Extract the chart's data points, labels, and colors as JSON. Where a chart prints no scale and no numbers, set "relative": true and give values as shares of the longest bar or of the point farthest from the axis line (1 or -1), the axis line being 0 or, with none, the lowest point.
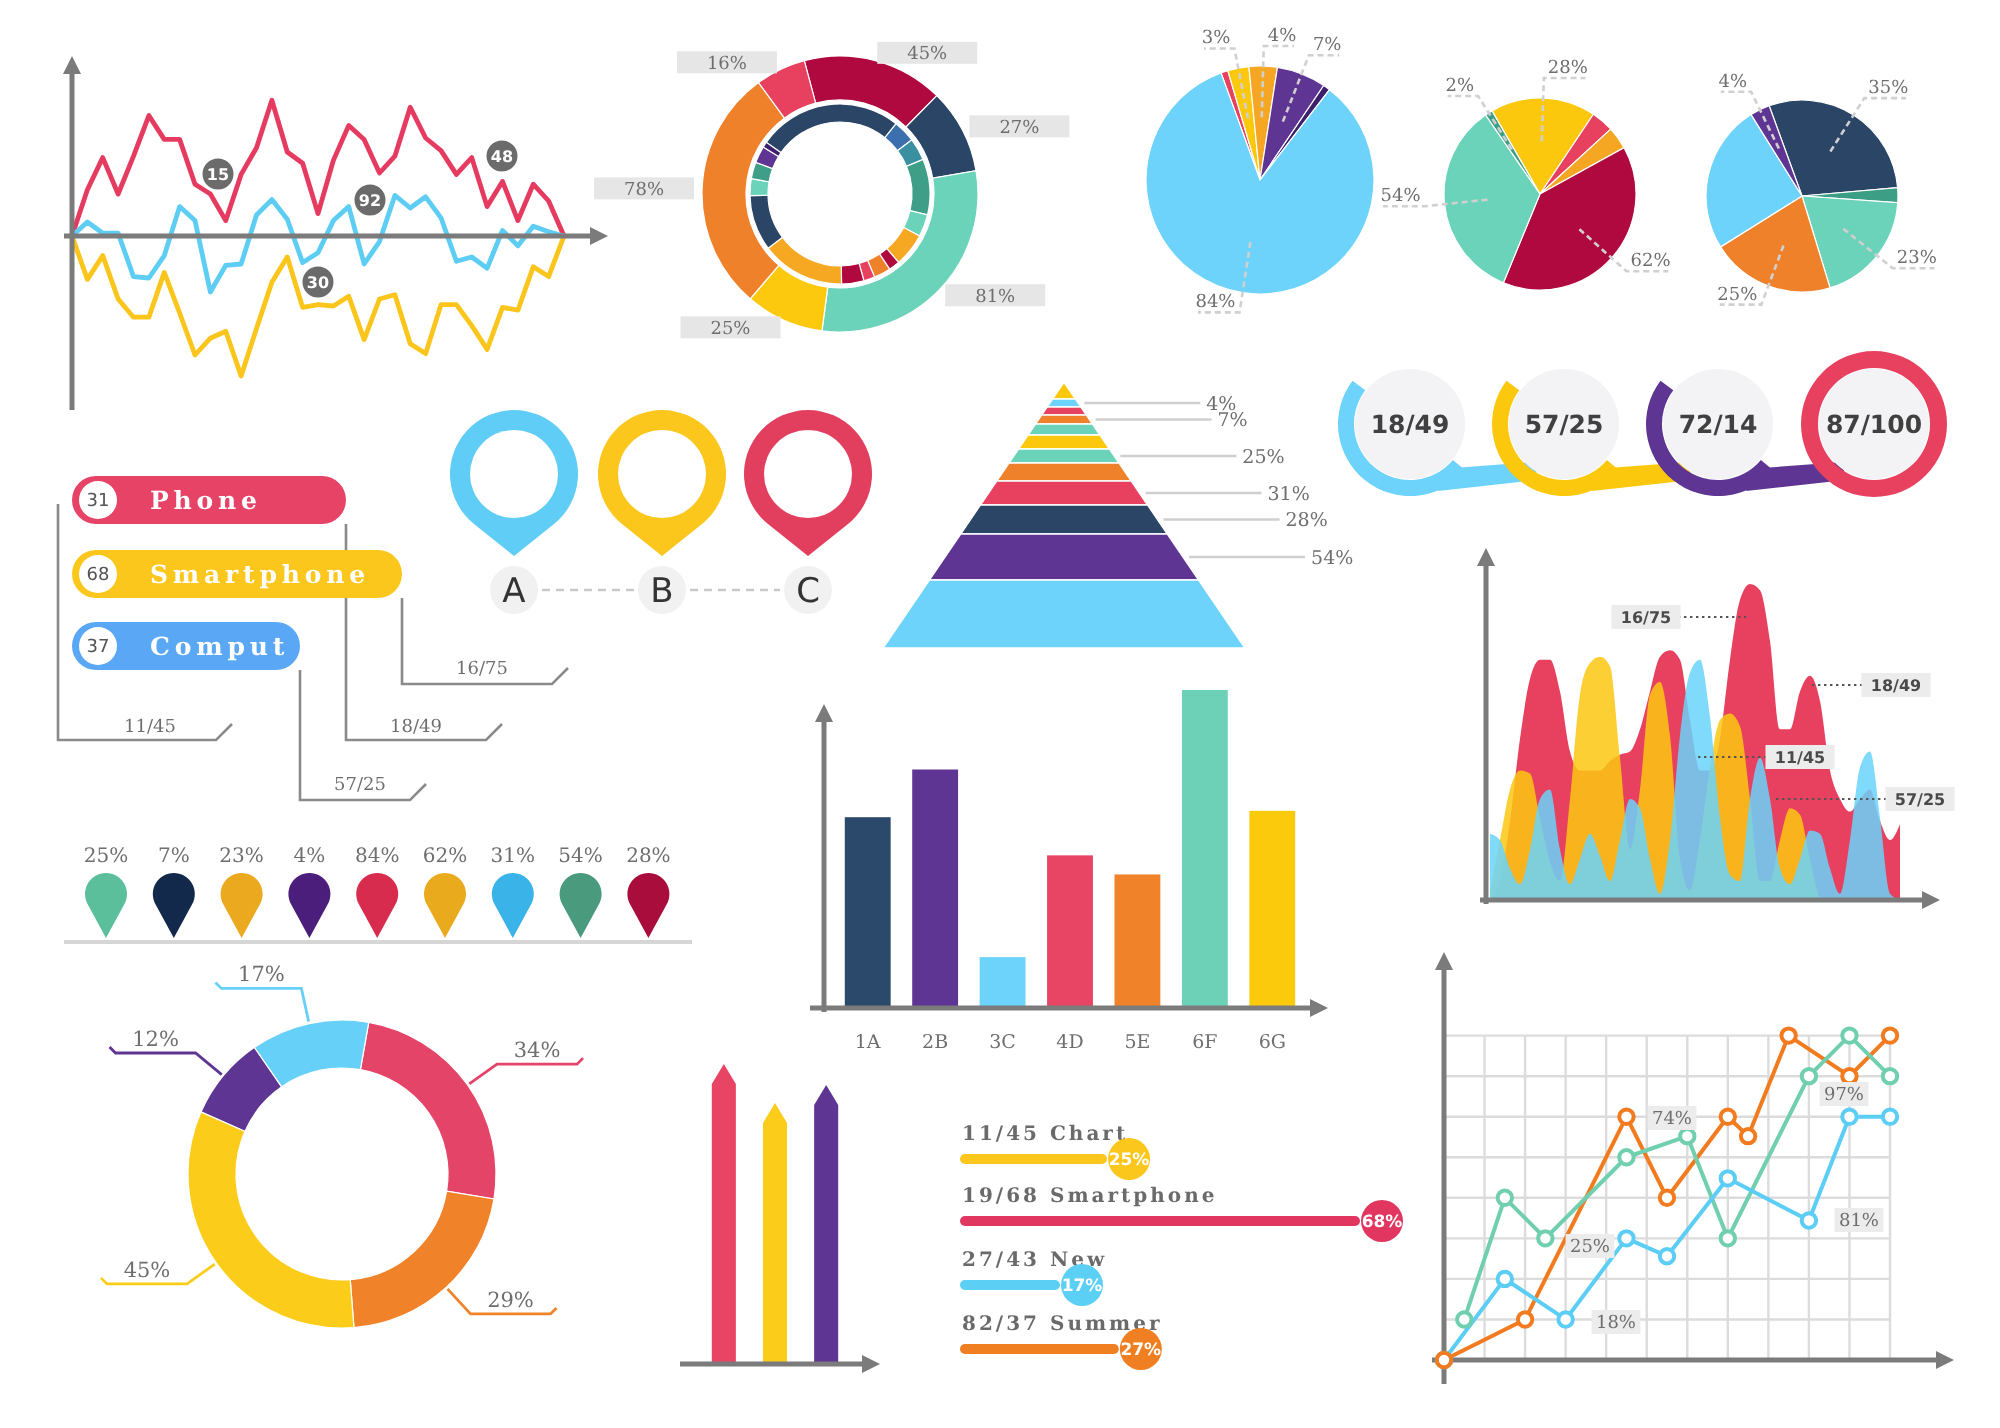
{
  "chart_data": [
    {
      "type": "line",
      "relative": true,
      "categories": [
        null,
        null,
        null,
        null,
        null,
        null,
        null,
        null,
        null,
        null,
        null,
        null,
        null,
        null,
        null,
        null,
        null,
        null,
        null,
        null,
        null,
        null,
        null,
        null,
        null,
        null,
        null,
        null,
        null,
        null,
        null,
        null,
        null
      ],
      "series": [
        {
          "color": "#e63b60",
          "values": [
            0,
            0.33,
            0.56,
            0.3,
            0.57,
            0.86,
            0.69,
            0.69,
            0.37,
            0.3,
            0.11,
            0.44,
            0.63,
            0.97,
            0.6,
            0.52,
            0.16,
            0.54,
            0.79,
            0.69,
            0.45,
            0.57,
            0.92,
            0.7,
            0.61,
            0.44,
            0.56,
            0.21,
            0.39,
            0.11,
            0.37,
            0.25,
            0
          ]
        },
        {
          "color": "#5dcdf3",
          "values": [
            0,
            0.1,
            0.02,
            0.02,
            -0.29,
            -0.3,
            -0.14,
            0.21,
            0.11,
            -0.4,
            -0.21,
            -0.2,
            0.15,
            0.26,
            0.12,
            -0.19,
            -0.12,
            0.11,
            0.21,
            -0.2,
            -0.04,
            0.29,
            0.2,
            0.28,
            0.13,
            -0.18,
            -0.15,
            -0.23,
            0.04,
            -0.07,
            0.07,
            0.03,
            0
          ]
        },
        {
          "color": "#fbc51b",
          "values": [
            0,
            -0.31,
            -0.14,
            -0.45,
            -0.58,
            -0.58,
            -0.26,
            -0.55,
            -0.85,
            -0.73,
            -0.68,
            -1,
            -0.66,
            -0.33,
            -0.15,
            -0.51,
            -0.49,
            -0.5,
            -0.43,
            -0.74,
            -0.45,
            -0.42,
            -0.77,
            -0.84,
            -0.49,
            -0.49,
            -0.64,
            -0.81,
            -0.51,
            -0.53,
            -0.22,
            -0.29,
            0
          ]
        }
      ],
      "annotations": [
        "15",
        "92",
        "48",
        "30"
      ]
    },
    {
      "type": "donut",
      "categories": [
        null,
        null,
        null,
        null,
        null,
        null
      ],
      "values": [
        45,
        27,
        81,
        25,
        78,
        16
      ],
      "colors": [
        "#b0093f",
        "#2a4565",
        "#6ad3b9",
        "#fdc90e",
        "#f0812b",
        "#e8415f"
      ],
      "value_labels": [
        "45%",
        "27%",
        "81%",
        "25%",
        "78%",
        "16%"
      ]
    },
    {
      "type": "donut",
      "categories": [
        null,
        null,
        null,
        null,
        null,
        null,
        null,
        null,
        null,
        null,
        null,
        null,
        null,
        null,
        null,
        null
      ],
      "values": [
        26,
        4,
        4,
        10,
        4,
        6,
        2,
        3,
        2,
        4,
        15,
        10,
        3,
        3,
        3,
        1
      ],
      "colors": [
        "#2a4565",
        "#3c6fae",
        "#3a8fa0",
        "#3f9e88",
        "#6ad3b9",
        "#f7a823",
        "#b0093f",
        "#f0812b",
        "#e8415f",
        "#b0093f",
        "#f7a823",
        "#2a4565",
        "#6ad3b9",
        "#3f9e88",
        "#5e3593",
        "#3d1f6e"
      ]
    },
    {
      "type": "pie",
      "categories": [
        null,
        null,
        null,
        null,
        null,
        null
      ],
      "values": [
        1,
        3,
        4,
        7,
        1,
        84
      ],
      "colors": [
        "#e8415f",
        "#fcc80e",
        "#f5a623",
        "#5e3593",
        "#3d1f6e",
        "#6dd3fb"
      ],
      "value_labels": [
        null,
        "3%",
        "4%",
        "7%",
        null,
        "84%"
      ]
    },
    {
      "type": "pie",
      "categories": [
        null,
        null,
        null,
        null,
        null,
        null
      ],
      "values": [
        28,
        6,
        6,
        62,
        54,
        2
      ],
      "colors": [
        "#fcc80e",
        "#e8415f",
        "#f5a623",
        "#b0093f",
        "#6ad3b9",
        "#3d9e86"
      ],
      "value_labels": [
        "28%",
        null,
        null,
        "62%",
        "54%",
        "2%"
      ]
    },
    {
      "type": "pie",
      "categories": [
        null,
        null,
        null,
        null,
        null,
        null
      ],
      "values": [
        35,
        3,
        23,
        25,
        30,
        4
      ],
      "colors": [
        "#2a4565",
        "#3d9e86",
        "#6ad3b9",
        "#f0812b",
        "#6dd3fb",
        "#5e3593"
      ],
      "value_labels": [
        "35%",
        null,
        "23%",
        "25%",
        null,
        "4%"
      ]
    },
    {
      "type": "other",
      "categories": [
        "Phone",
        "Smartphone",
        "Comput"
      ],
      "values": [
        31,
        68,
        37
      ],
      "data_labels": true,
      "colors": [
        "#e64366",
        "#fcc71d",
        "#5aa8f5"
      ],
      "annotations": [
        "16/75",
        "18/49",
        "11/45",
        "57/25"
      ]
    },
    {
      "type": "other",
      "categories": [
        "A",
        "B",
        "C"
      ],
      "colors": [
        "#5fcdf5",
        "#fcc71d",
        "#e23e5e"
      ]
    },
    {
      "type": "other",
      "categories": [
        null,
        null,
        null,
        null,
        null,
        null,
        null,
        null,
        null,
        null,
        null,
        null
      ],
      "colors": [
        "#fcc80e",
        "#6dd3fb",
        "#e8415f",
        "#f0812b",
        "#6ad3b9",
        "#fcc80e",
        "#6ad3b9",
        "#f0812b",
        "#e8415f",
        "#2a4565",
        "#5e3593",
        "#6dd3fb"
      ],
      "value_labels": [
        null,
        "4%",
        null,
        "7%",
        null,
        null,
        "25%",
        null,
        "31%",
        "28%",
        "54%",
        null
      ]
    },
    {
      "type": "other",
      "categories": [
        "18/49",
        "57/25",
        "72/14",
        "87/100"
      ],
      "colors": [
        "#6dd3fb",
        "#fcc80e",
        "#5e3593",
        "#e8415f"
      ]
    },
    {
      "type": "other",
      "categories": [
        null,
        null,
        null,
        null,
        null,
        null,
        null,
        null,
        null
      ],
      "colors": [
        "#5bbf9c",
        "#13294b",
        "#eaa91e",
        "#4a1e7a",
        "#d82c4e",
        "#eaaa1e",
        "#3ab4e8",
        "#4a9a7e",
        "#a80d3b"
      ],
      "value_labels": [
        "25%",
        "7%",
        "23%",
        "4%",
        "84%",
        "62%",
        "31%",
        "54%",
        "28%"
      ]
    },
    {
      "type": "bar",
      "relative": true,
      "categories": [
        "1A",
        "2B",
        "3C",
        "4D",
        "5E",
        "6F",
        "6G"
      ],
      "values": [
        0.6,
        0.75,
        0.16,
        0.48,
        0.42,
        1,
        0.62
      ],
      "colors": [
        "#2b4a6b",
        "#5e3593",
        "#6dd3fb",
        "#e84464",
        "#f0832a",
        "#6cd1b6",
        "#fcca0d"
      ]
    },
    {
      "type": "area",
      "relative": true,
      "categories": [
        null,
        null,
        null,
        null,
        null,
        null,
        null,
        null,
        null,
        null,
        null,
        null,
        null,
        null,
        null,
        null,
        null,
        null,
        null,
        null,
        null,
        null,
        null,
        null,
        null,
        null,
        null,
        null,
        null,
        null,
        null,
        null,
        null,
        null,
        null,
        null,
        null,
        null,
        null,
        null,
        null,
        null
      ],
      "series": [
        {
          "color": "#e8405f",
          "values": [
            0,
            0.06,
            0.25,
            0.51,
            0.7,
            0.76,
            0.76,
            0.66,
            0.47,
            0.41,
            0.41,
            0.41,
            0.44,
            0.46,
            0.47,
            0.54,
            0.66,
            0.77,
            0.79,
            0.76,
            0.57,
            0.41,
            0.41,
            0.51,
            0.76,
            0.95,
            1,
            0.98,
            0.82,
            0.54,
            0.54,
            0.66,
            0.71,
            0.63,
            0.41,
            0.32,
            0.28,
            0.32,
            0.35,
            0.25,
            0.19,
            0.24
          ]
        },
        {
          "color": "#fcc812",
          "values": [
            0.03,
            0.19,
            0.35,
            0.41,
            0.4,
            0.26,
            0.12,
            0.06,
            0.32,
            0.65,
            0.75,
            0.77,
            0.74,
            0.45,
            0.16,
            0.35,
            0.65,
            0.69,
            0.52,
            0.13,
            0.03,
            0.19,
            0.42,
            0.57,
            0.59,
            0.55,
            0.32,
            0.06,
            0.06,
            0.19,
            0.29,
            0.27,
            0.13,
            0.01,
            0,
            0,
            0,
            0,
            0,
            0,
            0,
            0
          ]
        },
        {
          "color": "#6ad3fb",
          "values": [
            0.21,
            0.19,
            0.1,
            0.05,
            0.16,
            0.32,
            0.35,
            0.16,
            0.05,
            0.13,
            0.21,
            0.14,
            0.06,
            0.19,
            0.32,
            0.29,
            0.13,
            0.02,
            0.19,
            0.52,
            0.72,
            0.76,
            0.58,
            0.26,
            0.08,
            0.06,
            0.32,
            0.45,
            0.32,
            0.1,
            0.05,
            0.13,
            0.22,
            0.21,
            0.1,
            0.02,
            0.19,
            0.42,
            0.47,
            0.26,
            0.02,
            0
          ]
        }
      ],
      "annotations": [
        "16/75",
        "18/49",
        "11/45",
        "57/25"
      ]
    },
    {
      "type": "donut",
      "categories": [
        null,
        null,
        null,
        null,
        null
      ],
      "values": [
        34,
        29,
        45,
        12,
        17
      ],
      "colors": [
        "#e44468",
        "#f0832a",
        "#fccc1a",
        "#5e3593",
        "#67d0f8"
      ],
      "value_labels": [
        "34%",
        "29%",
        "45%",
        "12%",
        "17%"
      ]
    },
    {
      "type": "bar",
      "relative": true,
      "categories": [
        null,
        null,
        null
      ],
      "values": [
        1,
        0.87,
        0.93
      ],
      "colors": [
        "#e84464",
        "#fccc1a",
        "#5e3593"
      ]
    },
    {
      "type": "bar",
      "orientation": "horizontal",
      "categories": [
        "11/45 Chart",
        "19/68 Smartphone",
        "27/43 New",
        "82/37 Summer"
      ],
      "values": [
        25,
        68,
        17,
        27
      ],
      "value_labels": [
        "25%",
        "68%",
        "17%",
        "27%"
      ],
      "colors": [
        "#fcc71d",
        "#e0365f",
        "#5ccff5",
        "#f07f22"
      ]
    },
    {
      "type": "line",
      "relative": true,
      "categories": [
        null,
        null,
        null,
        null,
        null,
        null,
        null,
        null,
        null,
        null,
        null,
        null,
        null,
        null,
        null,
        null,
        null,
        null,
        null,
        null,
        null,
        null,
        null
      ],
      "grid": true,
      "marker": "circle",
      "series": [
        {
          "color": "#f27b1f",
          "values": [
            0,
            null,
            null,
            null,
            0.125,
            null,
            null,
            null,
            null,
            0.75,
            null,
            0.5,
            null,
            null,
            0.75,
            0.69,
            null,
            1,
            null,
            null,
            0.875,
            null,
            1
          ]
        },
        {
          "color": "#6fcfae",
          "values": [
            null,
            0.125,
            null,
            0.5,
            null,
            0.375,
            null,
            null,
            null,
            0.625,
            null,
            null,
            0.69,
            null,
            0.375,
            null,
            null,
            null,
            0.875,
            null,
            1,
            null,
            0.875
          ]
        },
        {
          "color": "#5ccdf4",
          "values": [
            0,
            null,
            null,
            0.25,
            null,
            null,
            0.125,
            null,
            null,
            0.375,
            null,
            0.32,
            null,
            null,
            0.56,
            null,
            null,
            null,
            0.43,
            null,
            0.75,
            null,
            0.75
          ]
        }
      ],
      "annotations": [
        "74%",
        "25%",
        "18%",
        "97%",
        "81%"
      ]
    }
  ]
}
